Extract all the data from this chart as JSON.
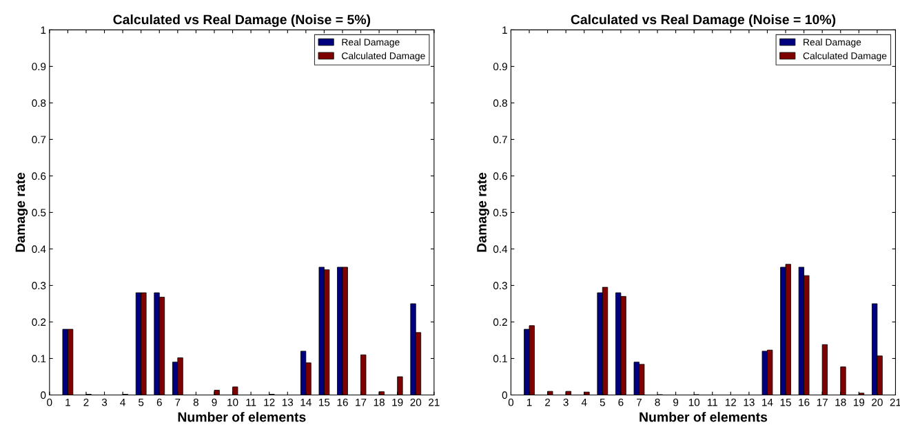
{
  "chart_data": [
    {
      "type": "bar",
      "title": "Calculated vs Real Damage (Noise = 5%)",
      "xlabel": "Number of elements",
      "ylabel": "Damage rate",
      "x": [
        1,
        2,
        3,
        4,
        5,
        6,
        7,
        8,
        9,
        10,
        11,
        12,
        13,
        14,
        15,
        16,
        17,
        18,
        19,
        20
      ],
      "series": [
        {
          "name": "Real Damage",
          "color": "#00007f",
          "values": [
            0.18,
            0,
            0,
            0,
            0.28,
            0.28,
            0.09,
            0,
            0,
            0,
            0,
            0,
            0,
            0.12,
            0.35,
            0.35,
            0,
            0,
            0,
            0.25
          ]
        },
        {
          "name": "Calculated Damage",
          "color": "#7f0000",
          "values": [
            0.18,
            0.002,
            0,
            0.002,
            0.28,
            0.268,
            0.102,
            0,
            0.013,
            0.022,
            0,
            0.002,
            0,
            0.088,
            0.343,
            0.35,
            0.11,
            0.009,
            0.05,
            0.171
          ]
        }
      ],
      "xlim": [
        0,
        21
      ],
      "xticks": [
        0,
        1,
        2,
        3,
        4,
        5,
        6,
        7,
        8,
        9,
        10,
        11,
        12,
        13,
        14,
        15,
        16,
        17,
        18,
        19,
        20,
        21
      ],
      "ylim": [
        0,
        1
      ],
      "yticks": [
        0,
        0.1,
        0.2,
        0.3,
        0.4,
        0.5,
        0.6,
        0.7,
        0.8,
        0.9,
        1
      ],
      "legend": "top right",
      "grid": false
    },
    {
      "type": "bar",
      "title": "Calculated vs Real Damage (Noise = 10%)",
      "xlabel": "Number of elements",
      "ylabel": "Damage rate",
      "x": [
        1,
        2,
        3,
        4,
        5,
        6,
        7,
        8,
        9,
        10,
        11,
        12,
        13,
        14,
        15,
        16,
        17,
        18,
        19,
        20
      ],
      "series": [
        {
          "name": "Real Damage",
          "color": "#00007f",
          "values": [
            0.18,
            0,
            0,
            0,
            0.28,
            0.28,
            0.09,
            0,
            0,
            0,
            0,
            0,
            0,
            0.12,
            0.35,
            0.35,
            0,
            0,
            0,
            0.25
          ]
        },
        {
          "name": "Calculated Damage",
          "color": "#7f0000",
          "values": [
            0.19,
            0.01,
            0.01,
            0.008,
            0.295,
            0.27,
            0.084,
            0.001,
            0,
            0.001,
            0,
            0,
            0,
            0.123,
            0.358,
            0.327,
            0.138,
            0.077,
            0.005,
            0.107
          ]
        }
      ],
      "xlim": [
        0,
        21
      ],
      "xticks": [
        0,
        1,
        2,
        3,
        4,
        5,
        6,
        7,
        8,
        9,
        10,
        11,
        12,
        13,
        14,
        15,
        16,
        17,
        18,
        19,
        20,
        21
      ],
      "ylim": [
        0,
        1
      ],
      "yticks": [
        0,
        0.1,
        0.2,
        0.3,
        0.4,
        0.5,
        0.6,
        0.7,
        0.8,
        0.9,
        1
      ],
      "legend": "top right",
      "grid": false
    }
  ]
}
